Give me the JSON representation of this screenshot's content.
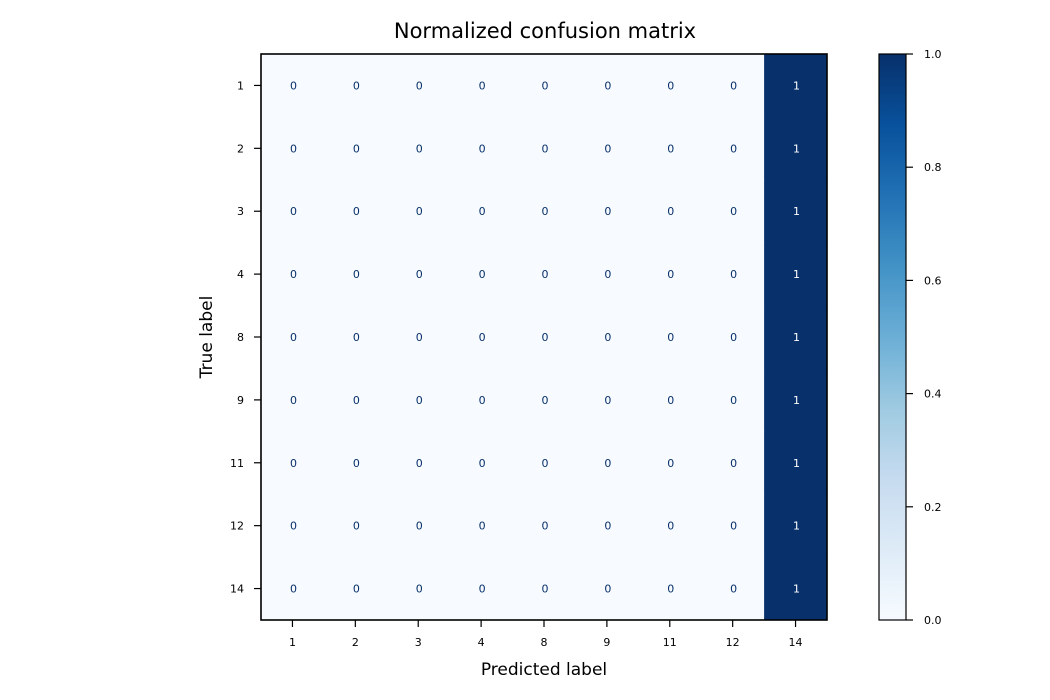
{
  "chart_data": {
    "type": "heatmap",
    "title": "Normalized confusion matrix",
    "xlabel": "Predicted label",
    "ylabel": "True label",
    "x_categories": [
      "1",
      "2",
      "3",
      "4",
      "8",
      "9",
      "11",
      "12",
      "14"
    ],
    "y_categories": [
      "1",
      "2",
      "3",
      "4",
      "8",
      "9",
      "11",
      "12",
      "14"
    ],
    "values": [
      [
        0,
        0,
        0,
        0,
        0,
        0,
        0,
        0,
        1
      ],
      [
        0,
        0,
        0,
        0,
        0,
        0,
        0,
        0,
        1
      ],
      [
        0,
        0,
        0,
        0,
        0,
        0,
        0,
        0,
        1
      ],
      [
        0,
        0,
        0,
        0,
        0,
        0,
        0,
        0,
        1
      ],
      [
        0,
        0,
        0,
        0,
        0,
        0,
        0,
        0,
        1
      ],
      [
        0,
        0,
        0,
        0,
        0,
        0,
        0,
        0,
        1
      ],
      [
        0,
        0,
        0,
        0,
        0,
        0,
        0,
        0,
        1
      ],
      [
        0,
        0,
        0,
        0,
        0,
        0,
        0,
        0,
        1
      ],
      [
        0,
        0,
        0,
        0,
        0,
        0,
        0,
        0,
        1
      ]
    ],
    "colormap": "Blues",
    "colorbar": {
      "range": [
        0.0,
        1.0
      ],
      "ticks": [
        "0.0",
        "0.2",
        "0.4",
        "0.6",
        "0.8",
        "1.0"
      ]
    },
    "colors": {
      "low": "#f7fbff",
      "high": "#08306b",
      "text_on_low": "#08306b",
      "text_on_high": "#ffffff"
    },
    "grid": false
  }
}
